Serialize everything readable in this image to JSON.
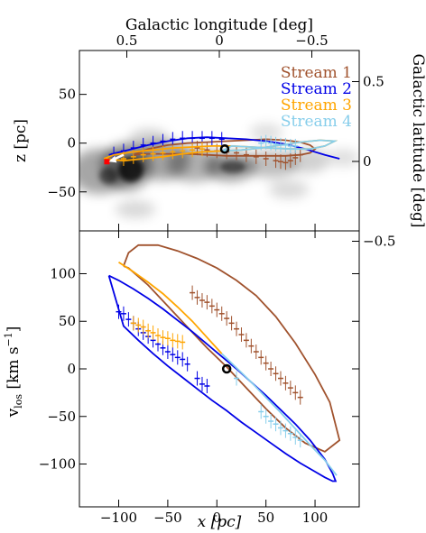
{
  "chart_data": [
    {
      "type": "line",
      "panel": "top",
      "xlabel": "x [pc]",
      "ylabel": "z [pc]",
      "top_axis_label": "Galactic longitude [deg]",
      "right_axis_label": "Galactic latitude [deg]",
      "xlim": [
        -140,
        145
      ],
      "ylim": [
        -90,
        95
      ],
      "x_ticks": [
        -100,
        -50,
        0,
        50,
        100
      ],
      "y_ticks": [
        -50,
        0,
        50
      ],
      "y_tick_labels": [
        "−50",
        "0",
        "50"
      ],
      "top_ticks": [
        0.5,
        0,
        -0.5
      ],
      "top_tick_labels": [
        "0.5",
        "0",
        "−0.5"
      ],
      "right_ticks": [
        0.5,
        0,
        -0.5
      ],
      "right_tick_labels": [
        "0.5",
        "0",
        "−0.5"
      ],
      "legend": {
        "placement": "top-right",
        "entries": [
          {
            "name": "Stream 1",
            "color": "#a0522d"
          },
          {
            "name": "Stream 2",
            "color": "#0000e6"
          },
          {
            "name": "Stream 3",
            "color": "#ffa500"
          },
          {
            "name": "Stream 4",
            "color": "#87ceeb"
          }
        ]
      },
      "background": "greyscale gas density map",
      "series": [
        {
          "name": "Stream 1",
          "color": "#a0522d",
          "x": [
            -85,
            -70,
            -50,
            -30,
            -10,
            10,
            30,
            50,
            70,
            85,
            95,
            100,
            95,
            85,
            70,
            50,
            30,
            10,
            -10,
            -30,
            -50,
            -70,
            -85
          ],
          "y": [
            -12,
            -6,
            -2,
            0,
            1,
            2,
            3,
            4,
            3,
            1,
            -2,
            -6,
            -10,
            -12,
            -13,
            -13,
            -13,
            -13,
            -12,
            -11,
            -11,
            -11,
            -12
          ],
          "points": [
            [
              -20,
              -5
            ],
            [
              -10,
              -7
            ],
            [
              0,
              -8
            ],
            [
              10,
              -9
            ],
            [
              20,
              -10
            ],
            [
              30,
              -12
            ],
            [
              40,
              -14
            ],
            [
              50,
              -16
            ],
            [
              60,
              -18
            ],
            [
              65,
              -19
            ],
            [
              70,
              -20
            ],
            [
              75,
              -18
            ],
            [
              80,
              -15
            ],
            [
              85,
              -12
            ]
          ]
        },
        {
          "name": "Stream 2",
          "color": "#0000e6",
          "x": [
            -110,
            -90,
            -70,
            -50,
            -30,
            -10,
            10,
            30,
            50,
            70,
            90,
            110,
            125
          ],
          "y": [
            -12,
            -7,
            -2,
            2,
            5,
            6,
            5,
            4,
            2,
            -1,
            -6,
            -12,
            -16
          ],
          "points": [
            [
              -105,
              -11
            ],
            [
              -95,
              -8
            ],
            [
              -85,
              -5
            ],
            [
              -75,
              -2
            ],
            [
              -65,
              0
            ],
            [
              -55,
              2
            ],
            [
              -45,
              4
            ],
            [
              -35,
              5
            ],
            [
              -25,
              5
            ],
            [
              -15,
              5
            ],
            [
              -5,
              5
            ],
            [
              5,
              4
            ]
          ]
        },
        {
          "name": "Stream 3",
          "color": "#ffa500",
          "x": [
            -115,
            -95,
            -75,
            -55,
            -35,
            -15,
            5,
            25,
            45,
            65,
            85,
            105,
            120,
            110,
            95,
            75,
            55,
            35,
            15,
            -5,
            -25,
            -45,
            -65,
            -85,
            -105,
            -115
          ],
          "y": [
            -16,
            -18,
            -16,
            -14,
            -11,
            -9,
            -8,
            -7,
            -5,
            -2,
            1,
            3,
            2,
            -3,
            -6,
            -6,
            -5,
            -4,
            -3,
            -3,
            -4,
            -5,
            -7,
            -9,
            -12,
            -16
          ],
          "points": [
            [
              -95,
              -16
            ],
            [
              -85,
              -14
            ],
            [
              -75,
              -12
            ],
            [
              -65,
              -11
            ],
            [
              -55,
              -10
            ],
            [
              -45,
              -9
            ],
            [
              -35,
              -8
            ],
            [
              -25,
              -7
            ],
            [
              -15,
              -6
            ]
          ]
        },
        {
          "name": "Stream 4",
          "color": "#87ceeb",
          "x": [
            5,
            25,
            45,
            65,
            85,
            105,
            120,
            110,
            95,
            75,
            55,
            35,
            15,
            5
          ],
          "y": [
            -8,
            -7,
            -5,
            -2,
            1,
            3,
            2,
            -3,
            -6,
            -6,
            -5,
            -4,
            -3,
            -8
          ],
          "points": [
            [
              45,
              0
            ],
            [
              50,
              1
            ],
            [
              55,
              0
            ],
            [
              60,
              -1
            ],
            [
              65,
              -2
            ],
            [
              70,
              -2
            ],
            [
              75,
              -3
            ],
            [
              80,
              -3
            ]
          ]
        }
      ],
      "markers": [
        {
          "label": "",
          "x": 8,
          "y": -6,
          "style": "open-circle",
          "color": "#000000"
        },
        {
          "label": "",
          "x": -112,
          "y": -19,
          "style": "filled-square",
          "color": "#ff0000"
        }
      ]
    },
    {
      "type": "line",
      "panel": "bottom",
      "xlabel": "x [pc]",
      "ylabel": "v_los [km s^-1]",
      "xlim": [
        -140,
        145
      ],
      "ylim": [
        -145,
        145
      ],
      "x_ticks": [
        -100,
        -50,
        0,
        50,
        100
      ],
      "x_tick_labels": [
        "−100",
        "−50",
        "0",
        "50",
        "100"
      ],
      "y_ticks": [
        -100,
        -50,
        0,
        50,
        100
      ],
      "y_tick_labels": [
        "−100",
        "−50",
        "0",
        "50",
        "100"
      ],
      "series": [
        {
          "name": "Stream 1",
          "color": "#a0522d",
          "x": [
            -95,
            -90,
            -80,
            -60,
            -40,
            -20,
            0,
            20,
            40,
            60,
            80,
            100,
            115,
            125,
            110,
            90,
            70,
            50,
            30,
            10,
            -10,
            -30,
            -50,
            -70,
            -90,
            -95
          ],
          "y": [
            108,
            122,
            130,
            130,
            124,
            116,
            106,
            93,
            77,
            55,
            27,
            -6,
            -35,
            -75,
            -87,
            -78,
            -62,
            -42,
            -20,
            2,
            22,
            44,
            66,
            88,
            106,
            108
          ],
          "points": [
            [
              -25,
              80
            ],
            [
              -20,
              75
            ],
            [
              -15,
              72
            ],
            [
              -10,
              70
            ],
            [
              -5,
              66
            ],
            [
              0,
              62
            ],
            [
              5,
              58
            ],
            [
              10,
              53
            ],
            [
              15,
              48
            ],
            [
              20,
              42
            ],
            [
              25,
              36
            ],
            [
              30,
              30
            ],
            [
              35,
              24
            ],
            [
              40,
              18
            ],
            [
              45,
              12
            ],
            [
              50,
              6
            ],
            [
              55,
              0
            ],
            [
              60,
              -5
            ],
            [
              65,
              -10
            ],
            [
              70,
              -15
            ],
            [
              75,
              -20
            ],
            [
              80,
              -25
            ],
            [
              85,
              -30
            ]
          ]
        },
        {
          "name": "Stream 2",
          "color": "#0000e6",
          "x": [
            -110,
            -100,
            -85,
            -70,
            -55,
            -40,
            -25,
            -10,
            5,
            20,
            35,
            50,
            65,
            80,
            95,
            110,
            118,
            121,
            118,
            110,
            100,
            85,
            70,
            55,
            40,
            25,
            10,
            -5,
            -20,
            -35,
            -50,
            -65,
            -80,
            -95,
            -110
          ],
          "y": [
            98,
            93,
            84,
            74,
            63,
            51,
            39,
            26,
            13,
            0,
            -14,
            -28,
            -43,
            -58,
            -75,
            -95,
            -110,
            -118,
            -118,
            -114,
            -108,
            -99,
            -89,
            -78,
            -67,
            -56,
            -44,
            -33,
            -21,
            -9,
            3,
            16,
            30,
            45,
            98
          ],
          "points": [
            [
              -100,
              60
            ],
            [
              -95,
              58
            ],
            [
              -90,
              52
            ],
            [
              -85,
              48
            ],
            [
              -80,
              42
            ],
            [
              -75,
              38
            ],
            [
              -70,
              34
            ],
            [
              -65,
              30
            ],
            [
              -60,
              26
            ],
            [
              -55,
              22
            ],
            [
              -50,
              18
            ],
            [
              -45,
              15
            ],
            [
              -40,
              12
            ],
            [
              -35,
              10
            ],
            [
              -30,
              5
            ],
            [
              -20,
              -10
            ],
            [
              -15,
              -16
            ],
            [
              -10,
              -18
            ]
          ]
        },
        {
          "name": "Stream 3",
          "color": "#ffa500",
          "x": [
            -100,
            -85,
            -70,
            -55,
            -40,
            -25,
            -10,
            5
          ],
          "y": [
            112,
            102,
            91,
            79,
            65,
            50,
            33,
            16
          ],
          "points": [
            [
              -85,
              48
            ],
            [
              -80,
              46
            ],
            [
              -75,
              44
            ],
            [
              -70,
              40
            ],
            [
              -65,
              38
            ],
            [
              -60,
              35
            ],
            [
              -55,
              33
            ],
            [
              -50,
              32
            ],
            [
              -45,
              30
            ],
            [
              -40,
              29
            ],
            [
              -35,
              28
            ]
          ]
        },
        {
          "name": "Stream 4",
          "color": "#87ceeb",
          "x": [
            5,
            20,
            35,
            50,
            65,
            80,
            95,
            110,
            122
          ],
          "y": [
            16,
            1,
            -14,
            -30,
            -46,
            -63,
            -80,
            -96,
            -112
          ],
          "points": [
            [
              20,
              -10
            ],
            [
              45,
              -45
            ],
            [
              50,
              -50
            ],
            [
              55,
              -55
            ],
            [
              60,
              -58
            ],
            [
              65,
              -62
            ],
            [
              70,
              -65
            ],
            [
              75,
              -68
            ],
            [
              80,
              -72
            ],
            [
              85,
              -75
            ]
          ]
        }
      ],
      "markers": [
        {
          "label": "",
          "x": 10,
          "y": 0,
          "style": "open-circle",
          "color": "#000000"
        }
      ]
    }
  ]
}
